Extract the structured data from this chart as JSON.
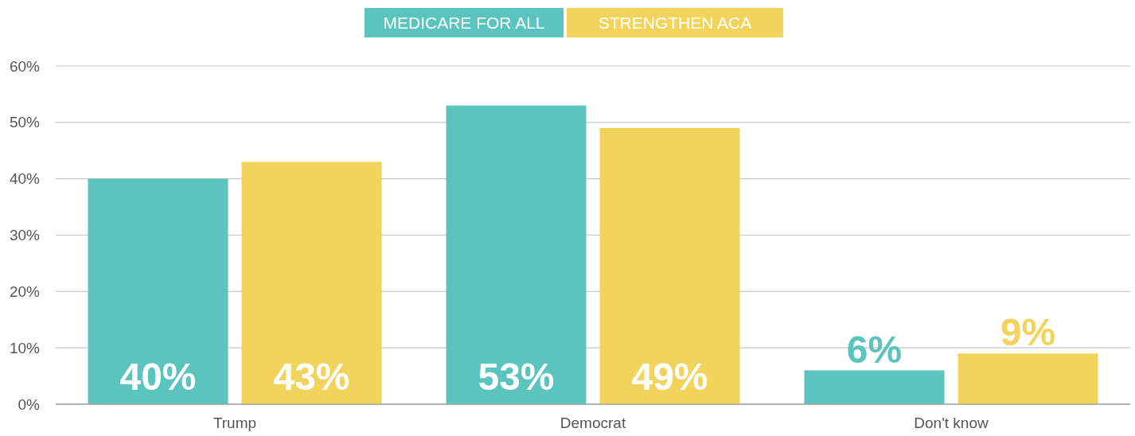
{
  "chart_data": {
    "type": "bar",
    "categories": [
      "Trump",
      "Democrat",
      "Don't know"
    ],
    "series": [
      {
        "name": "MEDICARE FOR ALL",
        "color": "#5bc4bf",
        "values": [
          40,
          53,
          6
        ],
        "value_labels": [
          "40%",
          "53%",
          "6%"
        ]
      },
      {
        "name": "STRENGTHEN ACA",
        "color": "#f2d35b",
        "values": [
          43,
          49,
          9
        ],
        "value_labels": [
          "43%",
          "49%",
          "9%"
        ]
      }
    ],
    "ylim": [
      0,
      60
    ],
    "yticks": [
      {
        "value": 0,
        "label": "0%"
      },
      {
        "value": 10,
        "label": "10%"
      },
      {
        "value": 20,
        "label": "20%"
      },
      {
        "value": 30,
        "label": "30%"
      },
      {
        "value": 40,
        "label": "40%"
      },
      {
        "value": 50,
        "label": "50%"
      },
      {
        "value": 60,
        "label": "60%"
      }
    ],
    "grid": "y",
    "legend": "top"
  }
}
